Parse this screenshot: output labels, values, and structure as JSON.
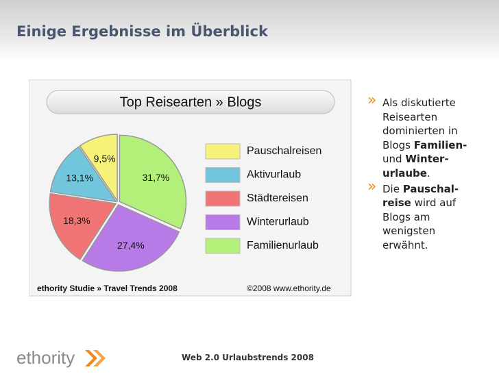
{
  "slide_title": "Einige Ergebnisse im Überblick",
  "chart_data": {
    "type": "pie",
    "title": "Top Reisearten » Blogs",
    "categories": [
      "Pauschalreisen",
      "Aktivurlaub",
      "Städtereisen",
      "Winterurlaub",
      "Familienurlaub"
    ],
    "values": [
      9.5,
      13.1,
      18.3,
      27.4,
      31.7
    ],
    "value_labels": [
      "9,5%",
      "13,1%",
      "18,3%",
      "27,4%",
      "31,7%"
    ],
    "colors": [
      "#f6f27a",
      "#72c6dc",
      "#f07474",
      "#b77ae6",
      "#b2f07a"
    ],
    "source": "ethority Studie » Travel Trends 2008",
    "copyright": "©2008 www.ethority.de"
  },
  "bullet_marker": "»",
  "bullets": [
    {
      "runs": [
        {
          "text": "Als diskutierte Reisearten dominierten in Blogs",
          "bold": false
        },
        {
          "text": "Familien-",
          "bold": true
        },
        {
          "text": "und",
          "bold": false
        },
        {
          "text": "Winter-urlaube",
          "bold": true
        },
        {
          "text": ".",
          "bold": false
        }
      ]
    },
    {
      "runs": [
        {
          "text": "Die",
          "bold": false
        },
        {
          "text": "Pauschal-reise",
          "bold": true
        },
        {
          "text": "wird auf Blogs am wenigsten erwähnt.",
          "bold": false
        }
      ]
    }
  ],
  "footer": {
    "logo": "ethority",
    "text": "Web 2.0 Urlaubstrends 2008"
  }
}
